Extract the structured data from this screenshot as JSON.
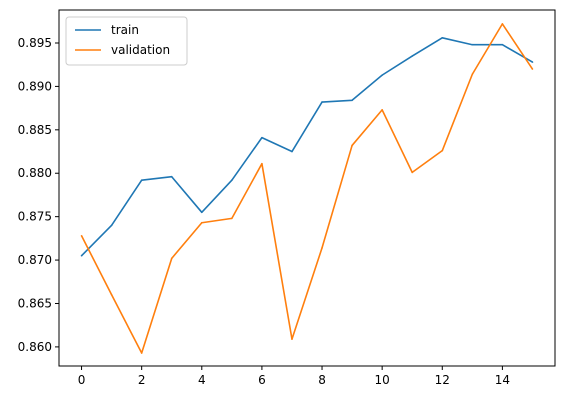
{
  "chart_data": {
    "type": "line",
    "title": "",
    "xlabel": "",
    "ylabel": "",
    "xlim": [
      -0.75,
      15.75
    ],
    "ylim": [
      0.8578,
      0.8988
    ],
    "grid": false,
    "legend_position": "top-left",
    "x": [
      0,
      1,
      2,
      3,
      4,
      5,
      6,
      7,
      8,
      9,
      10,
      11,
      12,
      13,
      14,
      15
    ],
    "x_ticks": [
      0,
      2,
      4,
      6,
      8,
      10,
      12,
      14
    ],
    "x_tick_labels": [
      "0",
      "2",
      "4",
      "6",
      "8",
      "10",
      "12",
      "14"
    ],
    "y_ticks": [
      0.86,
      0.865,
      0.87,
      0.875,
      0.88,
      0.885,
      0.89,
      0.895
    ],
    "y_tick_labels": [
      "0.860",
      "0.865",
      "0.870",
      "0.875",
      "0.880",
      "0.885",
      "0.890",
      "0.895"
    ],
    "series": [
      {
        "name": "train",
        "color": "#1f77b4",
        "values": [
          0.8705,
          0.874,
          0.8792,
          0.8796,
          0.8755,
          0.8792,
          0.8841,
          0.8825,
          0.8882,
          0.8884,
          0.8913,
          0.8935,
          0.8956,
          0.8948,
          0.8948,
          0.8928
        ]
      },
      {
        "name": "validation",
        "color": "#ff7f0e",
        "values": [
          0.8728,
          0.866,
          0.8593,
          0.8702,
          0.8743,
          0.8748,
          0.8811,
          0.8609,
          0.8714,
          0.8832,
          0.8873,
          0.8801,
          0.8826,
          0.8914,
          0.8972,
          0.892
        ]
      }
    ]
  }
}
